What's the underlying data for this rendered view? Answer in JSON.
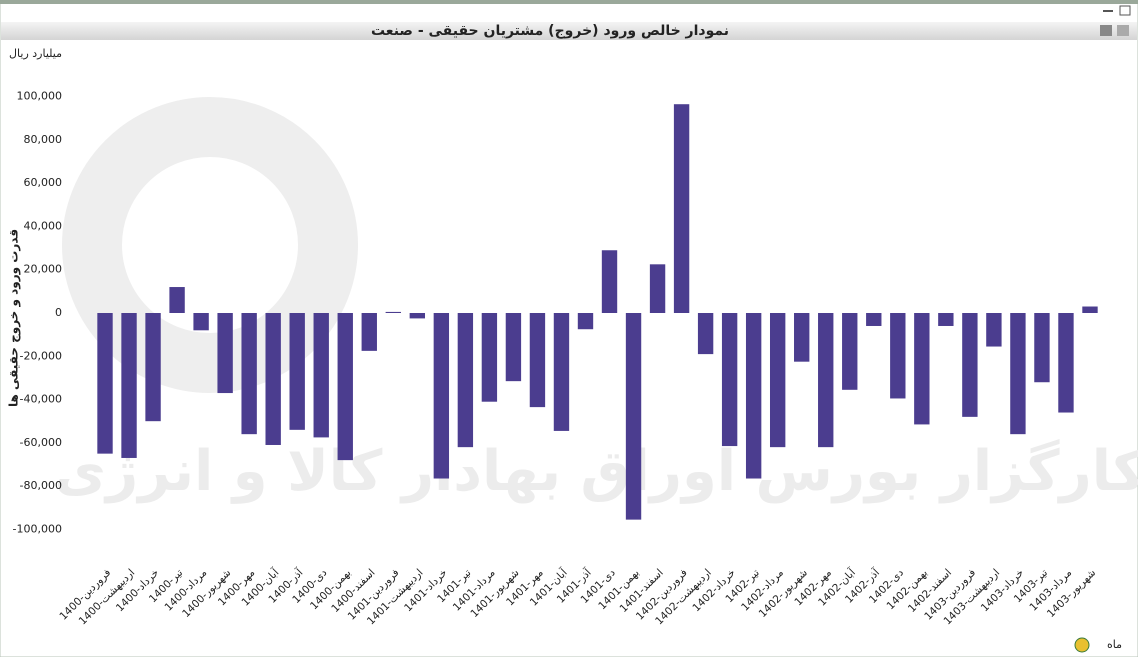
{
  "chart_data": {
    "type": "bar",
    "title": "نمودار خالص ورود (خروج) مشتریان حقیقی - صنعت",
    "unit_label": "میلیارد ریال",
    "y_label": "قدرت ورود و خروج حقیقی ها",
    "x_label": "ماه",
    "watermark": "کارگزار بورس اوراق بهادار کالا و انرژی",
    "color": "#4b3d8f",
    "grid": false,
    "categories": [
      "1400-فروردین",
      "1400-اردیبهشت",
      "1400-خرداد",
      "1400-تیر",
      "1400-مرداد",
      "1400-شهریور",
      "1400-مهر",
      "1400-آبان",
      "1400-آذر",
      "1400-دی",
      "1400-بهمن",
      "1400-اسفند",
      "1401-فروردین",
      "1401-اردیبهشت",
      "1401-خرداد",
      "1401-تیر",
      "1401-مرداد",
      "1401-شهریور",
      "1401-مهر",
      "1401-آبان",
      "1401-آذر",
      "1401-دی",
      "1401-بهمن",
      "1401-اسفند",
      "1402-فروردین",
      "1402-اردیبهشت",
      "1402-خرداد",
      "1402-تیر",
      "1402-مرداد",
      "1402-شهریور",
      "1402-مهر",
      "1402-آبان",
      "1402-آذر",
      "1402-دی",
      "1402-بهمن",
      "1402-اسفند",
      "1403-فروردین",
      "1403-اردیبهشت",
      "1403-خرداد",
      "1403-تیر",
      "1403-مرداد",
      "1403-شهریور"
    ],
    "values": [
      -65000,
      -67000,
      -50000,
      12000,
      -8000,
      -37000,
      -56000,
      -61000,
      -54000,
      -57500,
      -68000,
      -17500,
      500,
      -2500,
      -76500,
      -62000,
      -41000,
      -31500,
      -43500,
      -54500,
      -7500,
      29000,
      -95500,
      22500,
      96500,
      -19000,
      -61500,
      -76500,
      -62000,
      -22500,
      -62000,
      -35500,
      -6000,
      -39500,
      -51500,
      -6000,
      -48000,
      -15500,
      -56000,
      -32000,
      -46000,
      3000
    ],
    "ylim": [
      -110000,
      110000
    ],
    "yticks": [
      {
        "value": -100000,
        "label": "-100,000"
      },
      {
        "value": -80000,
        "label": "-80,000"
      },
      {
        "value": -60000,
        "label": "-60,000"
      },
      {
        "value": -40000,
        "label": "-40,000"
      },
      {
        "value": -20000,
        "label": "-20,000"
      },
      0,
      {
        "value": 20000,
        "label": "20,000"
      },
      {
        "value": 40000,
        "label": "40,000"
      },
      {
        "value": 60000,
        "label": "60,000"
      },
      {
        "value": 80000,
        "label": "80,000"
      },
      {
        "value": 100000,
        "label": "100,000"
      }
    ]
  }
}
